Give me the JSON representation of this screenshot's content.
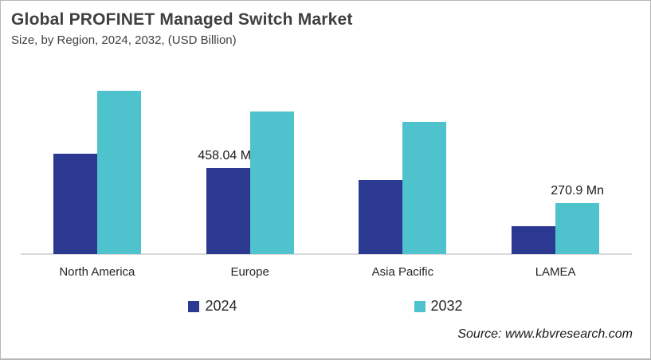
{
  "header": {
    "title": "Global PROFINET Managed Switch Market",
    "subtitle": "Size, by Region, 2024, 2032, (USD Billion)"
  },
  "source": {
    "label": "Source: www.kbvresearch.com"
  },
  "colors": {
    "series_2024": "#2B3990",
    "series_2032": "#4EC3CD",
    "axis_line": "#D9D9D9",
    "title_text": "#3F3F3F",
    "card_border": "#B7B7B7"
  },
  "legend": {
    "items": [
      {
        "label": "2024",
        "color": "#2B3990"
      },
      {
        "label": "2032",
        "color": "#4EC3CD"
      }
    ]
  },
  "chart_data": {
    "type": "bar",
    "title": "Global PROFINET Managed Switch Market",
    "subtitle": "Size, by Region, 2024, 2032, (USD Billion)",
    "categories": [
      "North America",
      "Europe",
      "Asia Pacific",
      "LAMEA"
    ],
    "series": [
      {
        "name": "2024",
        "color": "#2B3990",
        "values_mn": [
          535,
          458.04,
          395,
          148
        ],
        "labels": [
          "",
          "458.04 Mn",
          "",
          ""
        ]
      },
      {
        "name": "2032",
        "color": "#4EC3CD",
        "values_mn": [
          870,
          760,
          705,
          270.9
        ],
        "labels": [
          "",
          "",
          "",
          "270.9 Mn"
        ]
      }
    ],
    "unit": "USD Mn",
    "value_axis_visible": false,
    "gridlines": false,
    "legend_position": "bottom",
    "annotations": [
      "458.04 Mn",
      "270.9 Mn"
    ]
  }
}
